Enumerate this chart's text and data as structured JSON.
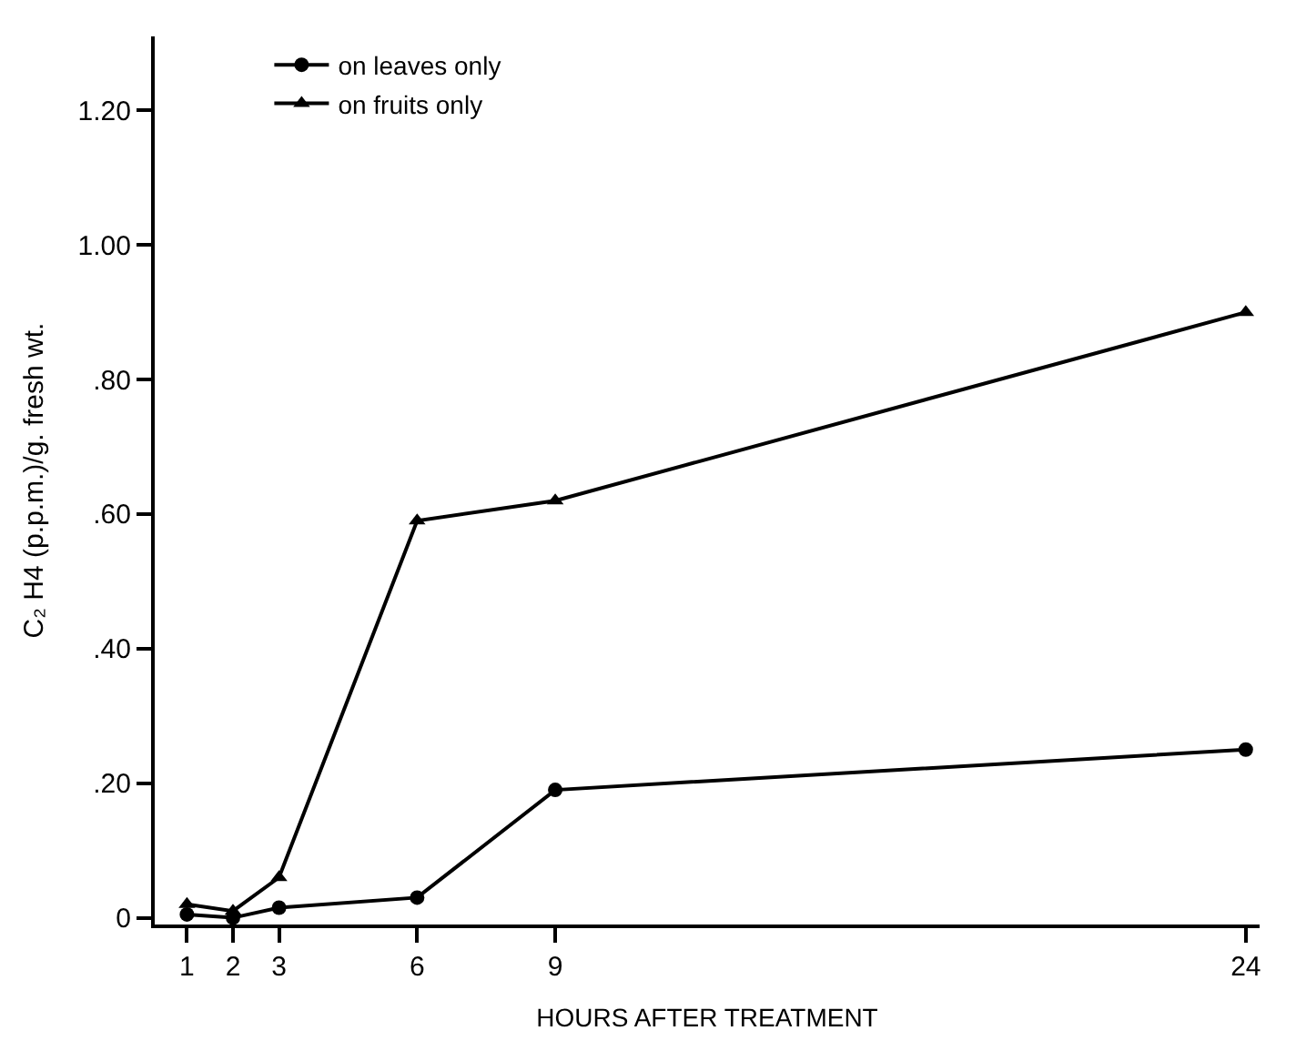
{
  "chart_data": {
    "type": "line",
    "xlabel": "HOURS AFTER TREATMENT",
    "ylabel": "C₂ H4 (p.p.m.)/g. fresh wt.",
    "x": [
      1,
      2,
      3,
      6,
      9,
      24
    ],
    "series": [
      {
        "name": "on leaves only",
        "color": "#000000",
        "marker": "circle",
        "values": [
          0.005,
          0.0,
          0.015,
          0.03,
          0.19,
          0.25
        ]
      },
      {
        "name": "on fruits only",
        "color": "#000000",
        "marker": "triangle",
        "values": [
          0.02,
          0.01,
          0.06,
          0.59,
          0.62,
          0.9
        ]
      }
    ],
    "xlim": [
      0.3,
      24.3
    ],
    "ylim": [
      -0.01,
      1.31
    ],
    "xticks": [
      1,
      2,
      3,
      6,
      9,
      24
    ],
    "yticks": [
      0,
      {
        "value": 0.2,
        "label": ".20"
      },
      {
        "value": 0.4,
        "label": ".40"
      },
      {
        "value": 0.6,
        "label": ".60"
      },
      {
        "value": 0.8,
        "label": ".80"
      },
      {
        "value": 1.0,
        "label": "1.00"
      },
      {
        "value": 1.2,
        "label": "1.20"
      }
    ],
    "legend": "top",
    "line_style": "solid"
  }
}
